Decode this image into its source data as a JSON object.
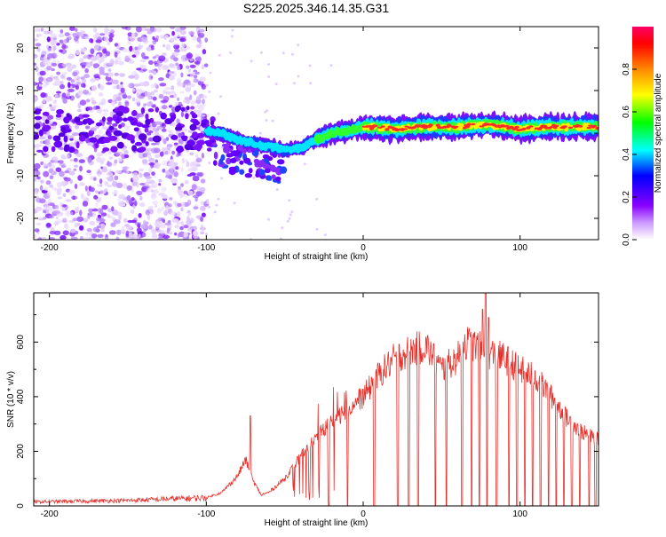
{
  "title": "S225.2025.346.14.35.G31",
  "colors": {
    "snr_line": "#e8302b",
    "axis": "#000000",
    "background": "#ffffff"
  },
  "chart_data": [
    {
      "type": "heatmap",
      "name": "spectrogram",
      "title": "S225.2025.346.14.35.G31",
      "xlabel": "Height of straight line (km)",
      "ylabel": "Frequency (Hz)",
      "xlim": [
        -210,
        150
      ],
      "ylim": [
        -25,
        25
      ],
      "xticks": [
        -200,
        -100,
        0,
        100
      ],
      "yticks": [
        -20,
        -10,
        0,
        10,
        20
      ],
      "ridge": [
        {
          "x": -100,
          "y": 0.5
        },
        {
          "x": -90,
          "y": 0
        },
        {
          "x": -80,
          "y": -1.5
        },
        {
          "x": -70,
          "y": -2.5
        },
        {
          "x": -60,
          "y": -3
        },
        {
          "x": -50,
          "y": -4
        },
        {
          "x": -40,
          "y": -3.5
        },
        {
          "x": -30,
          "y": -1.5
        },
        {
          "x": -20,
          "y": 0
        },
        {
          "x": -10,
          "y": 0.5
        },
        {
          "x": 0,
          "y": 1.5
        },
        {
          "x": 20,
          "y": 1
        },
        {
          "x": 40,
          "y": 1.5
        },
        {
          "x": 60,
          "y": 1.5
        },
        {
          "x": 80,
          "y": 2
        },
        {
          "x": 100,
          "y": 1
        },
        {
          "x": 120,
          "y": 1.5
        },
        {
          "x": 150,
          "y": 1.5
        }
      ]
    },
    {
      "type": "colorbar",
      "name": "amplitude-colorbar",
      "label": "Normalized spectral amplitude",
      "range": [
        0,
        1
      ],
      "ticks": [
        "0.0",
        "0.2",
        "0.4",
        "0.6",
        "0.8"
      ],
      "tick_values": [
        0,
        0.2,
        0.4,
        0.6,
        0.8
      ],
      "colors": [
        "#ffffff",
        "#cc99ff",
        "#8800ff",
        "#0000ff",
        "#00ffff",
        "#00ff00",
        "#ffff00",
        "#ff8800",
        "#ff0000",
        "#ff0066"
      ]
    },
    {
      "type": "line",
      "name": "snr",
      "xlabel": "Height of straight line (km)",
      "ylabel": "SNR (10 * v/v)",
      "xlim": [
        -210,
        150
      ],
      "ylim": [
        0,
        780
      ],
      "xticks": [
        -200,
        -100,
        0,
        100
      ],
      "yticks": [
        0,
        200,
        400,
        600
      ],
      "envelope_x": [
        -210,
        -150,
        -100,
        -90,
        -80,
        -75,
        -70,
        -65,
        -60,
        -50,
        -40,
        -30,
        -20,
        -10,
        0,
        10,
        20,
        30,
        40,
        50,
        60,
        65,
        70,
        80,
        90,
        100,
        110,
        120,
        130,
        140,
        150
      ],
      "envelope_y": [
        15,
        20,
        30,
        50,
        110,
        170,
        90,
        40,
        50,
        100,
        180,
        250,
        310,
        360,
        400,
        480,
        540,
        570,
        585,
        500,
        540,
        600,
        590,
        560,
        540,
        500,
        470,
        400,
        320,
        270,
        240
      ],
      "dropouts": [
        -22,
        -10,
        7,
        22,
        29,
        35,
        46,
        53,
        63,
        69,
        74,
        79,
        85,
        93,
        98,
        103,
        108,
        113,
        118,
        123,
        128,
        133,
        138,
        144,
        148
      ],
      "spikes": [
        {
          "x": -72,
          "y": 330
        },
        {
          "x": 78,
          "y": 780
        },
        {
          "x": 80,
          "y": 690
        },
        {
          "x": 76,
          "y": 720
        }
      ]
    }
  ]
}
